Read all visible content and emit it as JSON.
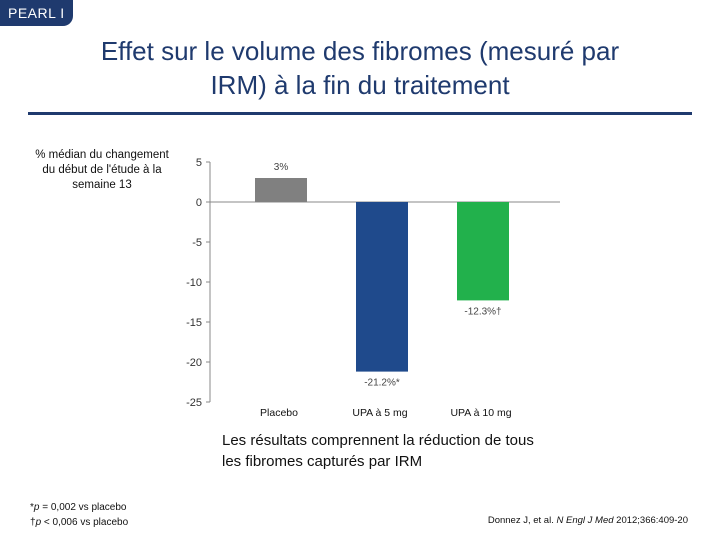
{
  "badge": "PEARL I",
  "title_line1": "Effet sur le volume des fibromes (mesuré par",
  "title_line2": "IRM) à la fin du traitement",
  "caption_line1": "Les résultats comprennent la réduction de tous",
  "caption_line2": "les fibromes capturés par IRM",
  "footnotes": {
    "f1_sym": "*",
    "f1_p": "p",
    "f1_text": " = 0,002 vs placebo",
    "f2_sym": "†",
    "f2_p": "p",
    "f2_text": " < 0,006 vs placebo"
  },
  "citation": {
    "authors": "Donnez J, et al. ",
    "journal": "N Engl J Med",
    "rest": " 2012;366:409-20"
  },
  "chart_data": {
    "type": "bar",
    "ylabel_lines": [
      "% médian du changement",
      "du début de l'étude à la",
      "semaine 13"
    ],
    "categories": [
      "Placebo",
      "UPA à 5 mg",
      "UPA à 10 mg"
    ],
    "values": [
      3,
      -21.2,
      -12.3
    ],
    "data_labels": [
      "3%",
      "-21.2%*",
      "-12.3%†"
    ],
    "colors": [
      "#808080",
      "#1f4a8c",
      "#22b14c"
    ],
    "ylim": [
      -25,
      5
    ],
    "yticks": [
      5,
      0,
      -5,
      -10,
      -15,
      -20,
      -25
    ],
    "ytick_labels": [
      "5",
      "0",
      "-5",
      "-10",
      "-15",
      "-20",
      "-25"
    ],
    "grid": false,
    "legend": "none"
  }
}
